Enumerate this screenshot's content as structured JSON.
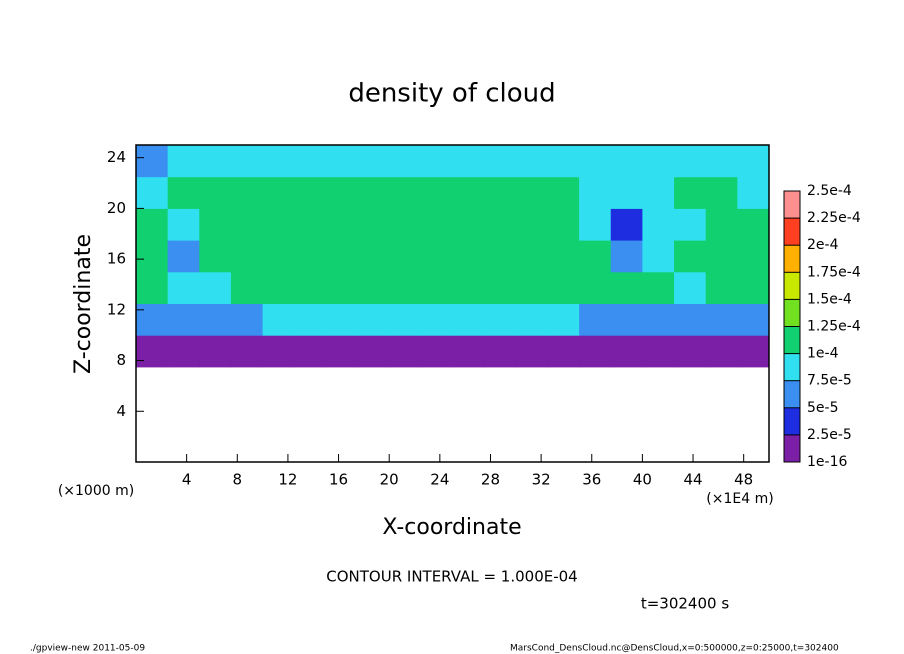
{
  "chart_data": {
    "type": "heatmap",
    "title": "density of cloud",
    "xlabel": "X-coordinate",
    "ylabel": "Z-coordinate",
    "x_unit": "(×1E4 m)",
    "y_unit": "(×1000 m)",
    "contour_note": "CONTOUR INTERVAL = 1.000E-04",
    "time_note": "t=302400 s",
    "footer_left": "./gpview-new  2011-05-09",
    "footer_right": "MarsCond_DensCloud.nc@DensCloud,x=0:500000,z=0:25000,t=302400",
    "xlim": [
      0,
      50
    ],
    "ylim": [
      0,
      25
    ],
    "xticks": [
      4,
      8,
      12,
      16,
      20,
      24,
      28,
      32,
      36,
      40,
      44,
      48
    ],
    "yticks": [
      4,
      8,
      12,
      16,
      20,
      24
    ],
    "x": [
      1.25,
      3.75,
      6.25,
      8.75,
      11.25,
      13.75,
      16.25,
      18.75,
      21.25,
      23.75,
      26.25,
      28.75,
      31.25,
      33.75,
      36.25,
      38.75,
      41.25,
      43.75,
      46.25,
      48.75
    ],
    "z": [
      1.25,
      3.75,
      6.25,
      8.75,
      11.25,
      13.75,
      16.25,
      18.75,
      21.25,
      23.75
    ],
    "values": [
      [
        null,
        null,
        null,
        null,
        null,
        null,
        null,
        null,
        null,
        null,
        null,
        null,
        null,
        null,
        null,
        null,
        null,
        null,
        null,
        null
      ],
      [
        null,
        null,
        null,
        null,
        null,
        null,
        null,
        null,
        null,
        null,
        null,
        null,
        null,
        null,
        null,
        null,
        null,
        null,
        null,
        null
      ],
      [
        null,
        null,
        null,
        null,
        null,
        null,
        null,
        null,
        null,
        null,
        null,
        null,
        null,
        null,
        null,
        null,
        null,
        null,
        null,
        null
      ],
      [
        1e-05,
        1e-05,
        1e-05,
        1e-05,
        1e-05,
        1e-05,
        1e-05,
        1e-05,
        1e-05,
        1e-05,
        1e-05,
        1e-05,
        1e-05,
        1e-05,
        1e-05,
        1e-05,
        1e-05,
        1e-05,
        1e-05,
        1e-05
      ],
      [
        7e-05,
        6e-05,
        5e-05,
        6e-05,
        8e-05,
        8.5e-05,
        8.5e-05,
        8.5e-05,
        8.5e-05,
        8.5e-05,
        8.5e-05,
        8.5e-05,
        8.5e-05,
        8e-05,
        6e-05,
        6e-05,
        6e-05,
        5e-05,
        6e-05,
        7e-05
      ],
      [
        0.000105,
        8e-05,
        8e-05,
        0.00011,
        0.000115,
        0.000115,
        0.000115,
        0.000115,
        0.000115,
        0.000115,
        0.000115,
        0.000115,
        0.000115,
        0.000115,
        0.00011,
        0.00011,
        0.00011,
        8e-05,
        0.00011,
        0.000105
      ],
      [
        0.000105,
        6e-05,
        0.00011,
        0.00012,
        0.00012,
        0.00012,
        0.00012,
        0.00012,
        0.00012,
        0.00012,
        0.00012,
        0.00012,
        0.00012,
        0.00012,
        0.00012,
        6e-05,
        8e-05,
        0.00011,
        0.00011,
        0.000105
      ],
      [
        0.000105,
        8e-05,
        0.00011,
        0.00012,
        0.00012,
        0.00012,
        0.00012,
        0.00012,
        0.00012,
        0.00012,
        0.00012,
        0.00012,
        0.00012,
        0.00012,
        8e-05,
        4e-05,
        8e-05,
        8e-05,
        0.000105,
        0.000105
      ],
      [
        8e-05,
        0.000105,
        0.000115,
        0.000115,
        0.000115,
        0.000115,
        0.000115,
        0.000115,
        0.000115,
        0.000115,
        0.000115,
        0.000115,
        0.000115,
        0.000115,
        8e-05,
        8e-05,
        8e-05,
        0.000105,
        0.000105,
        8e-05
      ],
      [
        6e-05,
        8e-05,
        9e-05,
        9e-05,
        9e-05,
        9e-05,
        9e-05,
        9e-05,
        9e-05,
        9e-05,
        9e-05,
        9e-05,
        9e-05,
        9e-05,
        9e-05,
        9e-05,
        9e-05,
        9e-05,
        9e-05,
        8e-05
      ]
    ],
    "levels": [
      {
        "value": 1e-16,
        "label": "1e-16"
      },
      {
        "value": 2.5e-05,
        "label": "2.5e-5"
      },
      {
        "value": 5e-05,
        "label": "5e-5"
      },
      {
        "value": 7.5e-05,
        "label": "7.5e-5"
      },
      {
        "value": 0.0001,
        "label": "1e-4"
      },
      {
        "value": 0.000125,
        "label": "1.25e-4"
      },
      {
        "value": 0.00015,
        "label": "1.5e-4"
      },
      {
        "value": 0.000175,
        "label": "1.75e-4"
      },
      {
        "value": 0.0002,
        "label": "2e-4"
      },
      {
        "value": 0.000225,
        "label": "2.25e-4"
      },
      {
        "value": 0.00025,
        "label": "2.5e-4"
      }
    ],
    "colors": [
      "#7b1fa6",
      "#1e2de0",
      "#3a8ff0",
      "#30e0f0",
      "#10d070",
      "#70e020",
      "#c8e800",
      "#ffb000",
      "#ff4020",
      "#ff9090"
    ]
  }
}
